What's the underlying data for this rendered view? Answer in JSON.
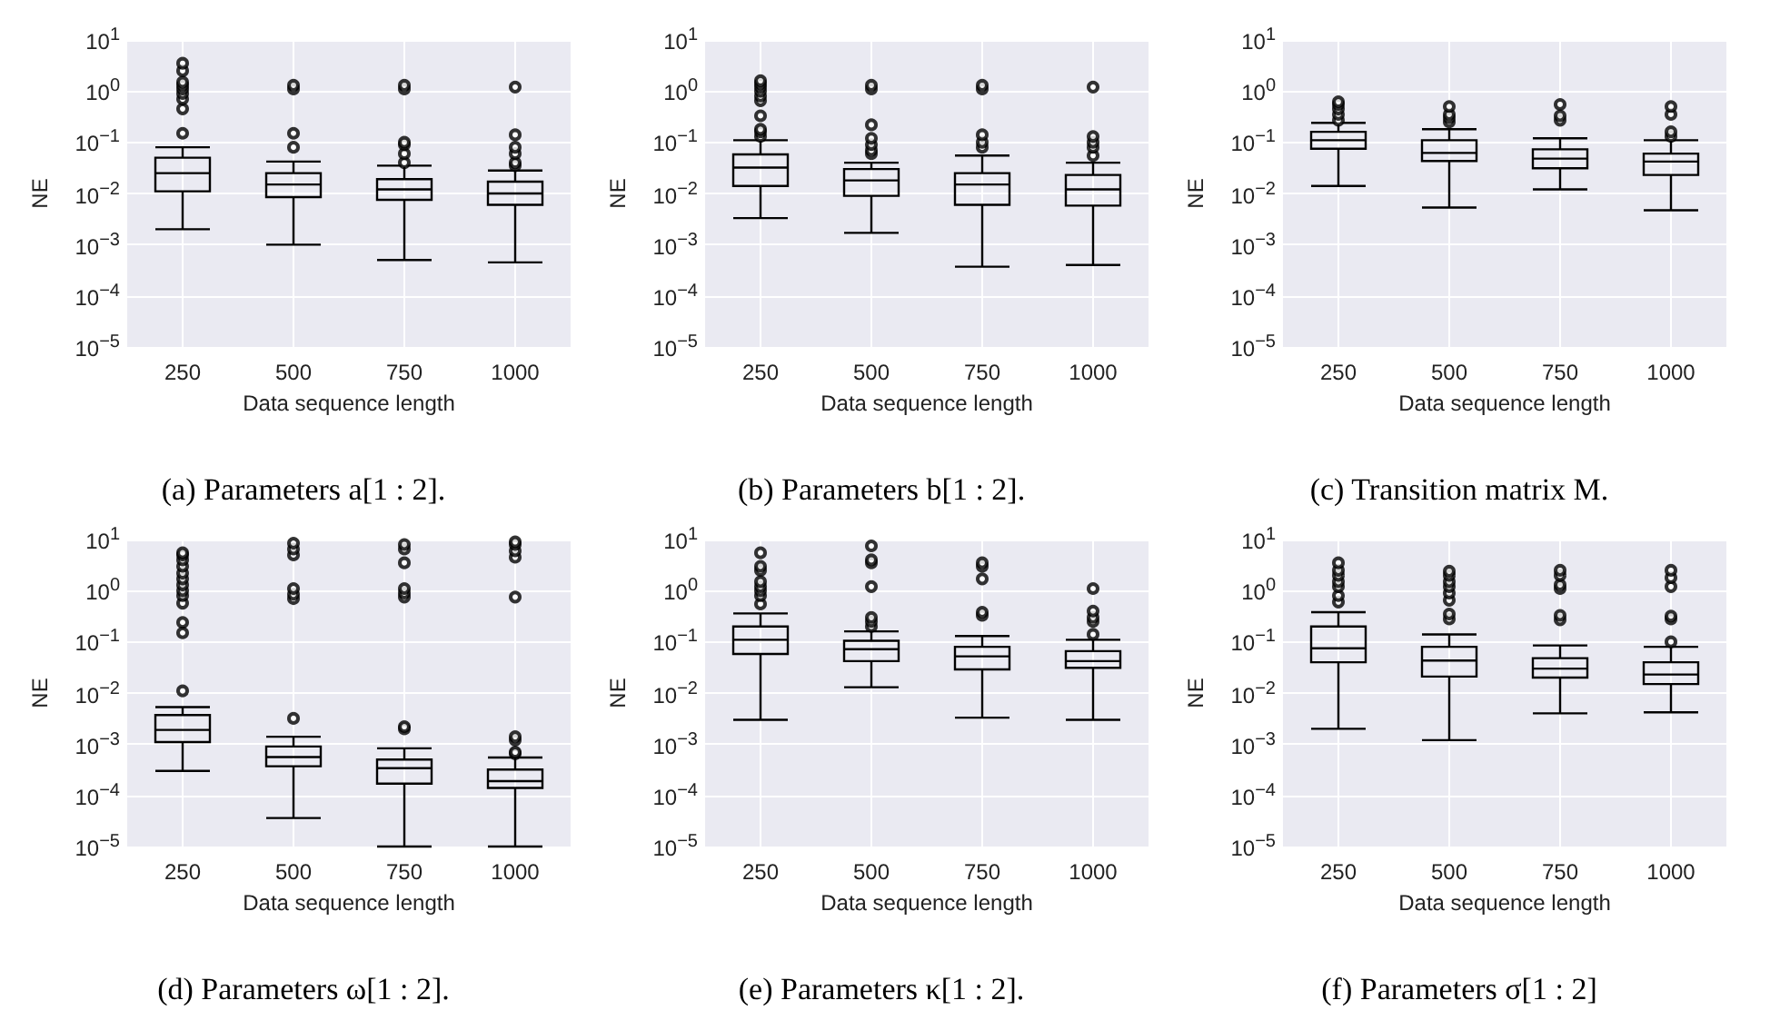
{
  "chart_data": [
    {
      "type": "box",
      "title": "(a) Parameters a[1 : 2].",
      "xlabel": "Data sequence length",
      "ylabel": "NE",
      "categories": [
        "250",
        "500",
        "750",
        "1000"
      ],
      "log": true,
      "grid": true,
      "ylim": [
        1e-05,
        10
      ],
      "yticks": [
        {
          "value": 1e-05,
          "label": "10$^{−5}$"
        },
        {
          "value": 0.0001,
          "label": "10$^{−4}$"
        },
        {
          "value": 0.001,
          "label": "10$^{−3}$"
        },
        {
          "value": 0.01,
          "label": "10$^{−2}$"
        },
        {
          "value": 0.1,
          "label": "10$^{−1}$"
        },
        {
          "value": 1,
          "label": "10$^{0}$"
        },
        {
          "value": 10,
          "label": "10$^{1}$"
        }
      ],
      "series": [
        {
          "color": "#000000",
          "boxes": [
            {
              "low": 0.002,
              "q1": 0.011,
              "median": 0.025,
              "q3": 0.05,
              "high": 0.08,
              "outliers": [
                0.15,
                0.45,
                0.7,
                0.9,
                1.1,
                1.3,
                1.5,
                2.5,
                3.5
              ]
            },
            {
              "low": 0.001,
              "q1": 0.0085,
              "median": 0.015,
              "q3": 0.025,
              "high": 0.042,
              "outliers": [
                0.08,
                0.15,
                1.1,
                1.3
              ]
            },
            {
              "low": 0.0005,
              "q1": 0.0075,
              "median": 0.012,
              "q3": 0.019,
              "high": 0.035,
              "outliers": [
                0.04,
                0.06,
                0.09,
                0.1,
                1.1,
                1.3
              ]
            },
            {
              "low": 0.00045,
              "q1": 0.006,
              "median": 0.01,
              "q3": 0.017,
              "high": 0.028,
              "outliers": [
                0.035,
                0.04,
                0.06,
                0.08,
                0.14,
                1.2
              ]
            }
          ]
        }
      ]
    },
    {
      "type": "box",
      "title": "(b) Parameters b[1 : 2].",
      "xlabel": "Data sequence length",
      "ylabel": "NE",
      "categories": [
        "250",
        "500",
        "750",
        "1000"
      ],
      "log": true,
      "grid": true,
      "ylim": [
        1e-05,
        10
      ],
      "yticks": [
        {
          "value": 1e-05,
          "label": "10$^{−5}$"
        },
        {
          "value": 0.0001,
          "label": "10$^{−4}$"
        },
        {
          "value": 0.001,
          "label": "10$^{−3}$"
        },
        {
          "value": 0.01,
          "label": "10$^{−2}$"
        },
        {
          "value": 0.1,
          "label": "10$^{−1}$"
        },
        {
          "value": 1,
          "label": "10$^{0}$"
        },
        {
          "value": 10,
          "label": "10$^{1}$"
        }
      ],
      "series": [
        {
          "color": "#000000",
          "boxes": [
            {
              "low": 0.0033,
              "q1": 0.014,
              "median": 0.032,
              "q3": 0.058,
              "high": 0.11,
              "outliers": [
                0.13,
                0.16,
                0.18,
                0.33,
                0.65,
                0.8,
                1.0,
                1.2,
                1.4,
                1.6
              ]
            },
            {
              "low": 0.0017,
              "q1": 0.009,
              "median": 0.018,
              "q3": 0.03,
              "high": 0.04,
              "outliers": [
                0.06,
                0.07,
                0.09,
                0.12,
                0.22,
                1.1,
                1.3
              ]
            },
            {
              "low": 0.00037,
              "q1": 0.006,
              "median": 0.015,
              "q3": 0.025,
              "high": 0.055,
              "outliers": [
                0.08,
                0.1,
                0.14,
                1.1,
                1.3
              ]
            },
            {
              "low": 0.0004,
              "q1": 0.0058,
              "median": 0.012,
              "q3": 0.023,
              "high": 0.04,
              "outliers": [
                0.055,
                0.08,
                0.1,
                0.13,
                1.2
              ]
            }
          ]
        }
      ]
    },
    {
      "type": "box",
      "title": "(c) Transition matrix M.",
      "xlabel": "Data sequence length",
      "ylabel": "NE",
      "categories": [
        "250",
        "500",
        "750",
        "1000"
      ],
      "log": true,
      "grid": true,
      "ylim": [
        1e-05,
        10
      ],
      "yticks": [
        {
          "value": 1e-05,
          "label": "10$^{−5}$"
        },
        {
          "value": 0.0001,
          "label": "10$^{−4}$"
        },
        {
          "value": 0.001,
          "label": "10$^{−3}$"
        },
        {
          "value": 0.01,
          "label": "10$^{−2}$"
        },
        {
          "value": 0.1,
          "label": "10$^{−1}$"
        },
        {
          "value": 1,
          "label": "10$^{0}$"
        },
        {
          "value": 10,
          "label": "10$^{1}$"
        }
      ],
      "series": [
        {
          "color": "#000000",
          "boxes": [
            {
              "low": 0.014,
              "q1": 0.075,
              "median": 0.11,
              "q3": 0.16,
              "high": 0.24,
              "outliers": [
                0.27,
                0.35,
                0.45,
                0.55,
                0.62
              ]
            },
            {
              "low": 0.0053,
              "q1": 0.043,
              "median": 0.062,
              "q3": 0.11,
              "high": 0.18,
              "outliers": [
                0.25,
                0.3,
                0.35,
                0.5
              ]
            },
            {
              "low": 0.012,
              "q1": 0.031,
              "median": 0.048,
              "q3": 0.073,
              "high": 0.12,
              "outliers": [
                0.27,
                0.33,
                0.55
              ]
            },
            {
              "low": 0.0047,
              "q1": 0.023,
              "median": 0.042,
              "q3": 0.06,
              "high": 0.11,
              "outliers": [
                0.13,
                0.16,
                0.35,
                0.5
              ]
            }
          ]
        }
      ]
    },
    {
      "type": "box",
      "title": "(d) Parameters ω[1 : 2].",
      "xlabel": "Data sequence length",
      "ylabel": "NE",
      "categories": [
        "250",
        "500",
        "750",
        "1000"
      ],
      "log": true,
      "grid": true,
      "ylim": [
        1e-05,
        10
      ],
      "yticks": [
        {
          "value": 1e-05,
          "label": "10$^{−5}$"
        },
        {
          "value": 0.0001,
          "label": "10$^{−4}$"
        },
        {
          "value": 0.001,
          "label": "10$^{−3}$"
        },
        {
          "value": 0.01,
          "label": "10$^{−2}$"
        },
        {
          "value": 0.1,
          "label": "10$^{−1}$"
        },
        {
          "value": 1,
          "label": "10$^{0}$"
        },
        {
          "value": 10,
          "label": "10$^{1}$"
        }
      ],
      "series": [
        {
          "color": "#000000",
          "boxes": [
            {
              "low": 0.0003,
              "q1": 0.0011,
              "median": 0.0019,
              "q3": 0.0037,
              "high": 0.0053,
              "outliers": [
                0.011,
                0.15,
                0.24,
                0.57,
                0.8,
                1.0,
                1.3,
                1.7,
                2.2,
                3,
                4,
                5,
                5.5
              ]
            },
            {
              "low": 3.6e-05,
              "q1": 0.00037,
              "median": 0.00056,
              "q3": 0.0009,
              "high": 0.0014,
              "outliers": [
                0.0032,
                0.7,
                0.85,
                1.1,
                5,
                6.5,
                8.5
              ]
            },
            {
              "low": 1e-05,
              "q1": 0.00017,
              "median": 0.00034,
              "q3": 0.0005,
              "high": 0.00083,
              "outliers": [
                0.002,
                0.0022,
                0.75,
                0.9,
                1.1,
                3.5,
                6.5,
                8
              ]
            },
            {
              "low": 1e-05,
              "q1": 0.00014,
              "median": 0.00019,
              "q3": 0.00032,
              "high": 0.00055,
              "outliers": [
                0.00065,
                0.0007,
                0.0012,
                0.0014,
                0.75,
                4.5,
                6,
                8,
                9
              ]
            }
          ]
        }
      ]
    },
    {
      "type": "box",
      "title": "(e) Parameters κ[1 : 2].",
      "xlabel": "Data sequence length",
      "ylabel": "NE",
      "categories": [
        "250",
        "500",
        "750",
        "1000"
      ],
      "log": true,
      "grid": true,
      "ylim": [
        1e-05,
        10
      ],
      "yticks": [
        {
          "value": 1e-05,
          "label": "10$^{−5}$"
        },
        {
          "value": 0.0001,
          "label": "10$^{−4}$"
        },
        {
          "value": 0.001,
          "label": "10$^{−3}$"
        },
        {
          "value": 0.01,
          "label": "10$^{−2}$"
        },
        {
          "value": 0.1,
          "label": "10$^{−1}$"
        },
        {
          "value": 1,
          "label": "10$^{0}$"
        },
        {
          "value": 10,
          "label": "10$^{1}$"
        }
      ],
      "series": [
        {
          "color": "#000000",
          "boxes": [
            {
              "low": 0.003,
              "q1": 0.058,
              "median": 0.11,
              "q3": 0.2,
              "high": 0.36,
              "outliers": [
                0.55,
                0.8,
                1.0,
                1.2,
                1.5,
                2.5,
                3,
                5.5
              ]
            },
            {
              "low": 0.013,
              "q1": 0.042,
              "median": 0.072,
              "q3": 0.105,
              "high": 0.16,
              "outliers": [
                0.2,
                0.25,
                0.3,
                1.2,
                3.5,
                4,
                7.5
              ]
            },
            {
              "low": 0.0033,
              "q1": 0.029,
              "median": 0.052,
              "q3": 0.08,
              "high": 0.13,
              "outliers": [
                0.33,
                0.38,
                1.7,
                3,
                3.5
              ]
            },
            {
              "low": 0.003,
              "q1": 0.031,
              "median": 0.042,
              "q3": 0.066,
              "high": 0.11,
              "outliers": [
                0.14,
                0.25,
                0.3,
                0.4,
                1.1
              ]
            }
          ]
        }
      ]
    },
    {
      "type": "box",
      "title": "(f) Parameters σ[1 : 2]",
      "xlabel": "Data sequence length",
      "ylabel": "NE",
      "categories": [
        "250",
        "500",
        "750",
        "1000"
      ],
      "log": true,
      "grid": true,
      "ylim": [
        1e-05,
        10
      ],
      "yticks": [
        {
          "value": 1e-05,
          "label": "10$^{−5}$"
        },
        {
          "value": 0.0001,
          "label": "10$^{−4}$"
        },
        {
          "value": 0.001,
          "label": "10$^{−3}$"
        },
        {
          "value": 0.01,
          "label": "10$^{−2}$"
        },
        {
          "value": 0.1,
          "label": "10$^{−1}$"
        },
        {
          "value": 1,
          "label": "10$^{0}$"
        },
        {
          "value": 10,
          "label": "10$^{1}$"
        }
      ],
      "series": [
        {
          "color": "#000000",
          "boxes": [
            {
              "low": 0.002,
              "q1": 0.04,
              "median": 0.075,
              "q3": 0.2,
              "high": 0.38,
              "outliers": [
                0.6,
                0.8,
                1.2,
                1.5,
                2,
                2.5,
                3.5
              ]
            },
            {
              "low": 0.0012,
              "q1": 0.021,
              "median": 0.043,
              "q3": 0.08,
              "high": 0.14,
              "outliers": [
                0.28,
                0.35,
                0.65,
                0.9,
                1.2,
                1.5,
                2,
                2.4
              ]
            },
            {
              "low": 0.004,
              "q1": 0.02,
              "median": 0.03,
              "q3": 0.048,
              "high": 0.085,
              "outliers": [
                0.27,
                0.33,
                1.1,
                1.3,
                2,
                2.5
              ]
            },
            {
              "low": 0.0042,
              "q1": 0.015,
              "median": 0.023,
              "q3": 0.04,
              "high": 0.08,
              "outliers": [
                0.1,
                0.28,
                0.32,
                1.2,
                1.8,
                2.5
              ]
            }
          ]
        }
      ]
    }
  ]
}
